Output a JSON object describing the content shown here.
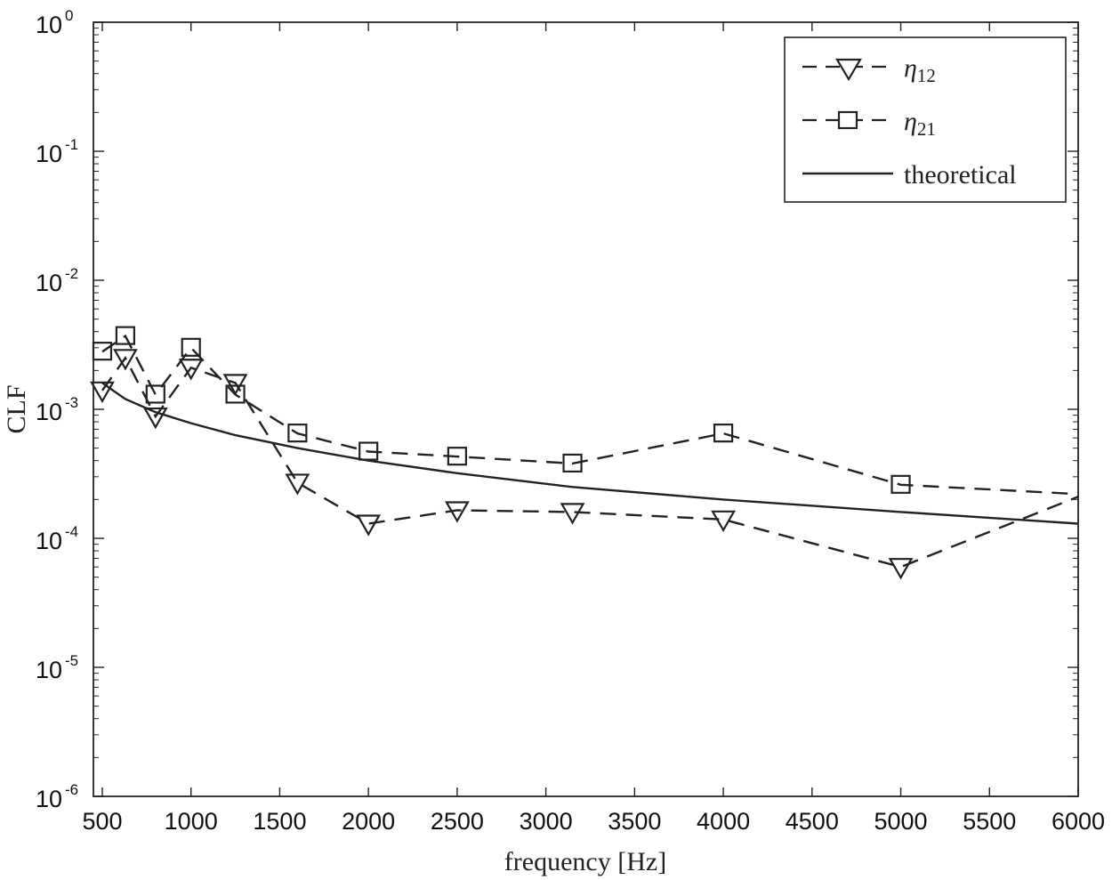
{
  "chart_data": {
    "type": "line",
    "title": "",
    "xlabel": "frequency [Hz]",
    "ylabel": "CLF",
    "xlim": [
      450,
      6000
    ],
    "ylim": [
      1e-06,
      1
    ],
    "yscale": "log",
    "grid": false,
    "legend_position": "top-right",
    "x_ticks": [
      500,
      1000,
      1500,
      2000,
      2500,
      3000,
      3500,
      4000,
      4500,
      5000,
      5500,
      6000
    ],
    "x_tick_labels": [
      "500",
      "1000",
      "1500",
      "2000",
      "2500",
      "3000",
      "3500",
      "4000",
      "4500",
      "5000",
      "5500",
      "6000"
    ],
    "y_ticks": [
      {
        "value": 1,
        "base": "10",
        "exp": "0"
      },
      {
        "value": 0.1,
        "base": "10",
        "exp": "-1"
      },
      {
        "value": 0.01,
        "base": "10",
        "exp": "-2"
      },
      {
        "value": 0.001,
        "base": "10",
        "exp": "-3"
      },
      {
        "value": 0.0001,
        "base": "10",
        "exp": "-4"
      },
      {
        "value": 1e-05,
        "base": "10",
        "exp": "-5"
      },
      {
        "value": 1e-06,
        "base": "10",
        "exp": "-6"
      }
    ],
    "series": [
      {
        "name": "eta12",
        "legend_symbol": "η",
        "legend_subscript": "12",
        "line": "dashed",
        "marker": "triangle-down",
        "x": [
          500,
          630,
          800,
          1000,
          1250,
          1600,
          2000,
          2500,
          3150,
          4000,
          5000,
          6000
        ],
        "y": [
          0.0014,
          0.0025,
          0.00088,
          0.0021,
          0.0016,
          0.00027,
          0.00013,
          0.000165,
          0.00016,
          0.00014,
          6e-05,
          0.00021
        ],
        "marker_count": 11
      },
      {
        "name": "eta21",
        "legend_symbol": "η",
        "legend_subscript": "21",
        "line": "dashed",
        "marker": "square",
        "x": [
          500,
          630,
          800,
          1000,
          1250,
          1600,
          2000,
          2500,
          3150,
          4000,
          5000,
          6000
        ],
        "y": [
          0.0028,
          0.0037,
          0.0013,
          0.003,
          0.0013,
          0.00065,
          0.00047,
          0.00043,
          0.00038,
          0.00065,
          0.00026,
          0.00022
        ],
        "marker_count": 11
      },
      {
        "name": "theoretical",
        "legend_label": "theoretical",
        "line": "solid",
        "marker": "none",
        "x": [
          500,
          630,
          800,
          1000,
          1250,
          1600,
          2000,
          2500,
          3150,
          4000,
          5000,
          6000
        ],
        "y": [
          0.0016,
          0.0012,
          0.00095,
          0.00078,
          0.00063,
          0.0005,
          0.0004,
          0.00032,
          0.00025,
          0.0002,
          0.00016,
          0.00013
        ]
      }
    ]
  }
}
